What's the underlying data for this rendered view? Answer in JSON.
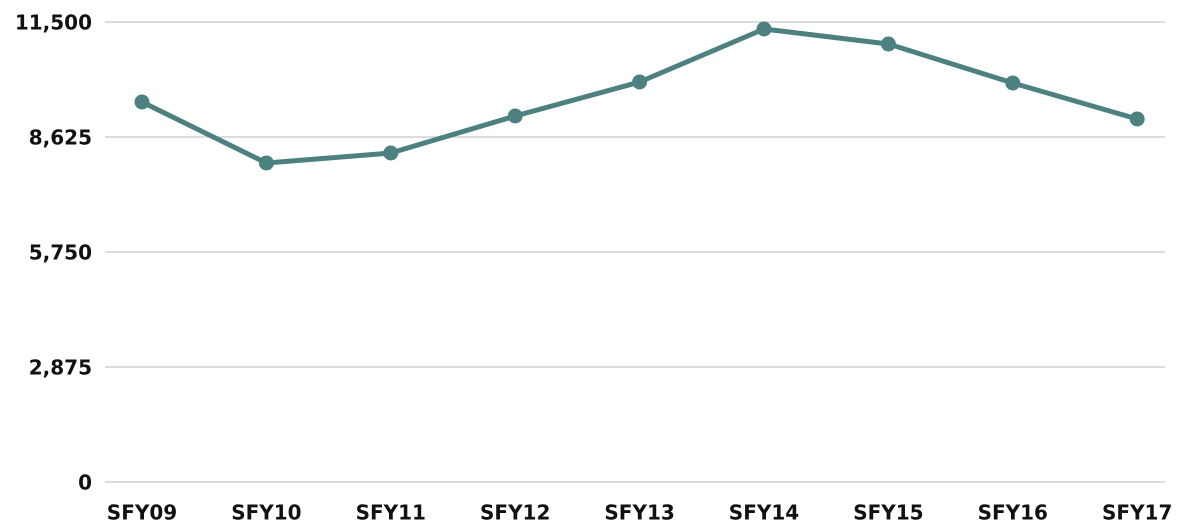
{
  "chart_data": {
    "type": "line",
    "categories": [
      "SFY09",
      "SFY10",
      "SFY11",
      "SFY12",
      "SFY13",
      "SFY14",
      "SFY15",
      "SFY16",
      "SFY17"
    ],
    "series": [
      {
        "name": null,
        "color": "#4d8080",
        "values": [
          9500,
          7975,
          8225,
          9150,
          10000,
          11325,
          10950,
          9975,
          9075
        ]
      }
    ],
    "ylim": [
      0,
      11500
    ],
    "yticks": [
      0,
      {
        "value": 2875,
        "label": "2,875"
      },
      {
        "value": 5750,
        "label": "5,750"
      },
      {
        "value": 8625,
        "label": "8,625"
      },
      {
        "value": 11500,
        "label": "11,500"
      }
    ],
    "grid": true
  }
}
